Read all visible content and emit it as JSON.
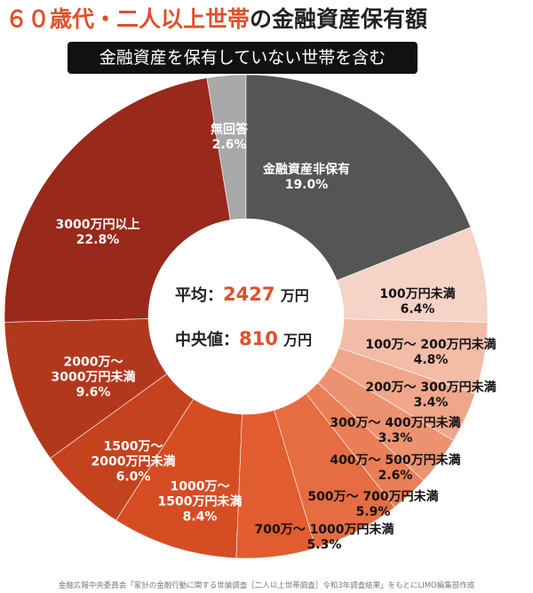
{
  "chart_data": {
    "type": "pie",
    "title_highlight": "６０歳代・二人以上世帯",
    "title_rest": "の金融資産保有額",
    "subtitle": "金融資産を保有していない世帯を含む",
    "categories": [
      "金融資産非保有",
      "100万円未満",
      "100万～ 200万円未満",
      "200万～ 300万円未満",
      "300万～ 400万円未満",
      "400万～ 500万円未満",
      "500万～ 700万円未満",
      "700万～ 1000万円未満",
      "1000万～ 1500万円未満",
      "1500万～ 2000万円未満",
      "2000万～ 3000万円未満",
      "3000万円以上",
      "無回答"
    ],
    "values": [
      19.0,
      6.4,
      4.8,
      3.4,
      3.3,
      2.6,
      5.9,
      5.3,
      8.4,
      6.0,
      9.6,
      22.8,
      2.6
    ],
    "value_labels": [
      "19.0%",
      "6.4%",
      "4.8%",
      "3.4%",
      "3.3%",
      "2.6%",
      "5.9%",
      "5.3%",
      "8.4%",
      "6.0%",
      "9.6%",
      "22.8%",
      "2.6%"
    ],
    "colors": [
      "#555555",
      "#f6d3c7",
      "#f3bca7",
      "#f0a68a",
      "#ed9270",
      "#ea7e56",
      "#e66c41",
      "#e15c2f",
      "#d64d24",
      "#c5421f",
      "#b2381d",
      "#98291b",
      "#a9a9a9"
    ],
    "center": {
      "mean_label": "平均：",
      "mean": 2427,
      "median_label": "中央値：",
      "median": 810,
      "unit": "万円"
    },
    "source": "金融広報中央委員会「家計の金融行動に関する世論調査［二人以上世帯調査］令和3年調査結果」をもとにLIMO編集部作成"
  }
}
